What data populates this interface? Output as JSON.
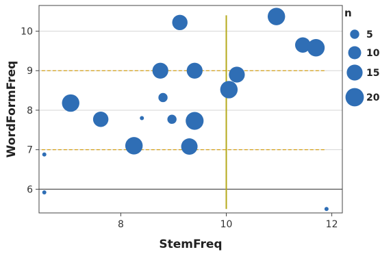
{
  "chart_data": {
    "type": "scatter",
    "xlabel": "StemFreq",
    "ylabel": "WordFormFreq",
    "xlim": [
      6.45,
      12.2
    ],
    "ylim": [
      5.4,
      10.65
    ],
    "x_ticks": [
      8,
      10,
      12
    ],
    "y_ticks": [
      6,
      7,
      8,
      9,
      10
    ],
    "grid": true,
    "point_color": "#2f6eb5",
    "reference_lines": {
      "vertical": {
        "x": 10,
        "y_range": [
          5.5,
          10.4
        ],
        "color": "#b5aa1b"
      },
      "horizontal_dashed": [
        {
          "y": 9,
          "x_range": [
            6.5,
            11.9
          ],
          "color": "#d4a017"
        },
        {
          "y": 7,
          "x_range": [
            6.5,
            11.9
          ],
          "color": "#d4a017"
        }
      ],
      "horizontal_solid": {
        "y": 6,
        "color": "#555555"
      }
    },
    "size_legend": {
      "title": "n",
      "entries": [
        {
          "label": "5",
          "n": 5
        },
        {
          "label": "10",
          "n": 10
        },
        {
          "label": "15",
          "n": 15
        },
        {
          "label": "20",
          "n": 20
        }
      ]
    },
    "points": [
      {
        "x": 6.55,
        "y": 6.88,
        "n": 1
      },
      {
        "x": 6.55,
        "y": 5.92,
        "n": 1
      },
      {
        "x": 7.05,
        "y": 8.18,
        "n": 18
      },
      {
        "x": 7.62,
        "y": 7.77,
        "n": 14
      },
      {
        "x": 8.25,
        "y": 7.1,
        "n": 18
      },
      {
        "x": 8.4,
        "y": 7.8,
        "n": 1
      },
      {
        "x": 8.75,
        "y": 9.0,
        "n": 15
      },
      {
        "x": 8.8,
        "y": 8.32,
        "n": 5
      },
      {
        "x": 8.97,
        "y": 7.77,
        "n": 5
      },
      {
        "x": 9.12,
        "y": 10.22,
        "n": 14
      },
      {
        "x": 9.3,
        "y": 7.08,
        "n": 16
      },
      {
        "x": 9.4,
        "y": 9.0,
        "n": 15
      },
      {
        "x": 9.4,
        "y": 7.73,
        "n": 19
      },
      {
        "x": 10.05,
        "y": 8.52,
        "n": 18
      },
      {
        "x": 10.2,
        "y": 8.9,
        "n": 15
      },
      {
        "x": 10.95,
        "y": 10.37,
        "n": 18
      },
      {
        "x": 11.45,
        "y": 9.65,
        "n": 14
      },
      {
        "x": 11.7,
        "y": 9.58,
        "n": 18
      },
      {
        "x": 11.9,
        "y": 5.5,
        "n": 1
      }
    ]
  }
}
